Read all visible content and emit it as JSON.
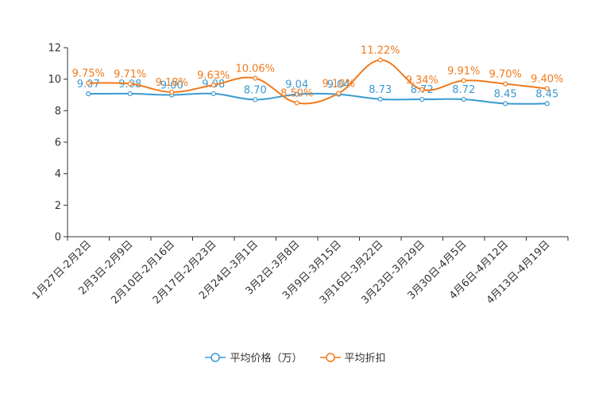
{
  "chart_data": {
    "type": "line",
    "title": "",
    "xlabel": "",
    "ylabel": "",
    "ylim": [
      0,
      12
    ],
    "yticks": [
      0,
      2,
      4,
      6,
      8,
      10,
      12
    ],
    "grid": false,
    "legend_position": "bottom",
    "categories": [
      "1月27日-2月2日",
      "2月3日-2月9日",
      "2月10日-2月16日",
      "2月17日-2月23日",
      "2月24日-3月1日",
      "3月2日-3月8日",
      "3月9日-3月15日",
      "3月16日-3月22日",
      "3月23日-3月29日",
      "3月30日-4月5日",
      "4月6日-4月12日",
      "4月13日-4月19日"
    ],
    "series": [
      {
        "name": "平均价格（万）",
        "color": "#3a9ad3",
        "values": [
          9.07,
          9.08,
          9.0,
          9.08,
          8.7,
          9.04,
          9.04,
          8.73,
          8.72,
          8.72,
          8.45,
          8.45
        ],
        "labels": [
          "9.07",
          "9.08",
          "9.00",
          "9.08",
          "8.70",
          "9.04",
          "9.04",
          "8.73",
          "8.72",
          "8.72",
          "8.45",
          "8.45"
        ]
      },
      {
        "name": "平均折扣",
        "color": "#f07a1b",
        "values": [
          9.75,
          9.71,
          9.18,
          9.63,
          10.06,
          8.5,
          9.1,
          11.22,
          9.34,
          9.91,
          9.7,
          9.4
        ],
        "labels": [
          "9.75%",
          "9.71%",
          "9.18%",
          "9.63%",
          "10.06%",
          "8.50%",
          "9.10%",
          "11.22%",
          "9.34%",
          "9.91%",
          "9.70%",
          "9.40%"
        ]
      }
    ]
  }
}
